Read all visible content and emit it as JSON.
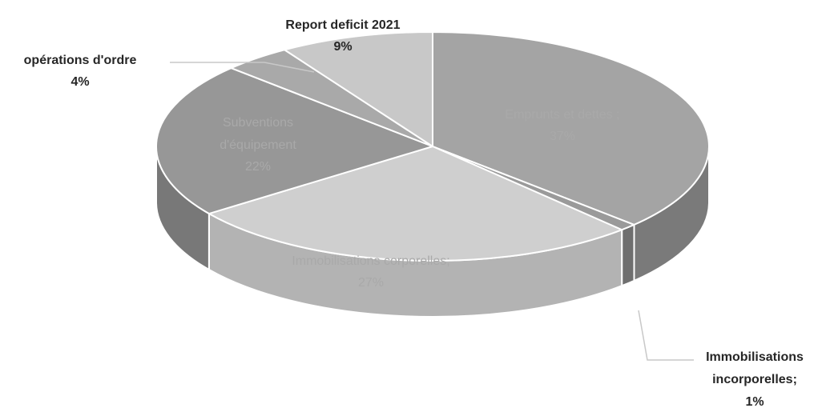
{
  "chart_data": {
    "type": "pie",
    "slices": [
      {
        "key": "emprunts",
        "label_lines": [
          "Emprunts et dettes ;",
          "37%"
        ],
        "value": 37,
        "color": "#a4a4a4",
        "side": "#7a7a7a",
        "label_pos": "inside"
      },
      {
        "key": "incorporelles",
        "label_lines": [
          "Immobilisations",
          "incorporelles;",
          "1%"
        ],
        "value": 1,
        "color": "#9a9a9a",
        "side": "#6f6f6f",
        "label_pos": "outside"
      },
      {
        "key": "corporelles",
        "label_lines": [
          "Immobilisations corporelles;",
          "27%"
        ],
        "value": 27,
        "color": "#cfcfcf",
        "side": "#b3b3b3",
        "label_pos": "inside"
      },
      {
        "key": "subventions",
        "label_lines": [
          "Subventions",
          "d'équipement",
          "22%"
        ],
        "value": 22,
        "color": "#979797",
        "side": "#787878",
        "label_pos": "inside"
      },
      {
        "key": "operations",
        "label_lines": [
          "opérations d'ordre",
          "4%"
        ],
        "value": 4,
        "color": "#a9a9a9",
        "side": "#8a8a8a",
        "label_pos": "outside"
      },
      {
        "key": "report",
        "label_lines": [
          "Report deficit 2021",
          "9%"
        ],
        "value": 9,
        "color": "#c8c8c8",
        "side": "#a5a5a5",
        "label_pos": "outside"
      }
    ],
    "legend": "none",
    "style": "3d-pie"
  }
}
